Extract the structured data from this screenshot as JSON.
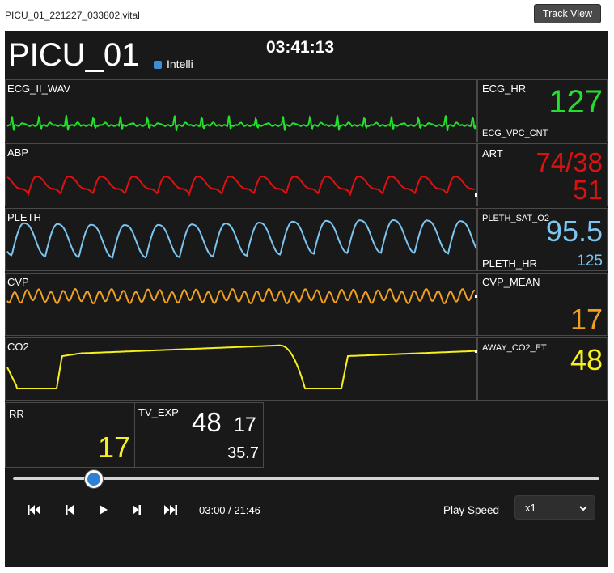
{
  "header": {
    "filename": "PICU_01_221227_033802.vital",
    "track_view_label": "Track View"
  },
  "monitor": {
    "bed": "PICU_01",
    "device": "Intelli",
    "clock": "03:41:13",
    "device_color": "#3b8fd6"
  },
  "waves": [
    {
      "label": "ECG_II_WAV",
      "color": "#22e12a"
    },
    {
      "label": "ABP",
      "color": "#e01010"
    },
    {
      "label": "PLETH",
      "color": "#7cc5f0"
    },
    {
      "label": "CVP",
      "color": "#f0a020"
    },
    {
      "label": "CO2",
      "color": "#f5f01e"
    }
  ],
  "numerics": {
    "ecg": {
      "label": "ECG_HR",
      "value": "127",
      "sub_label": "ECG_VPC_CNT",
      "color": "#22e12a"
    },
    "art": {
      "label": "ART",
      "value": "74/38",
      "mean": "51",
      "color": "#e01010"
    },
    "pleth": {
      "label": "PLETH_SAT_O2",
      "value": "95.5",
      "sub_label": "PLETH_HR",
      "sub_value": "125",
      "color": "#7cc5f0"
    },
    "cvp": {
      "label": "CVP_MEAN",
      "value": "17",
      "color": "#f0a020"
    },
    "co2": {
      "label": "AWAY_CO2_ET",
      "value": "48",
      "color": "#f5f01e"
    },
    "rr": {
      "label": "RR",
      "value": "17",
      "color": "#f5f01e"
    },
    "tv": {
      "label": "TV_EXP",
      "value": "48",
      "value2": "17",
      "value3": "35.7",
      "color": "#ffffff"
    }
  },
  "player": {
    "time": "03:00 / 21:46",
    "position_fraction": 0.138,
    "play_speed_label": "Play Speed",
    "speed_value": "x1",
    "controls": [
      "fast-rewind-icon",
      "step-back-icon",
      "play-icon",
      "step-forward-icon",
      "fast-forward-icon"
    ]
  }
}
